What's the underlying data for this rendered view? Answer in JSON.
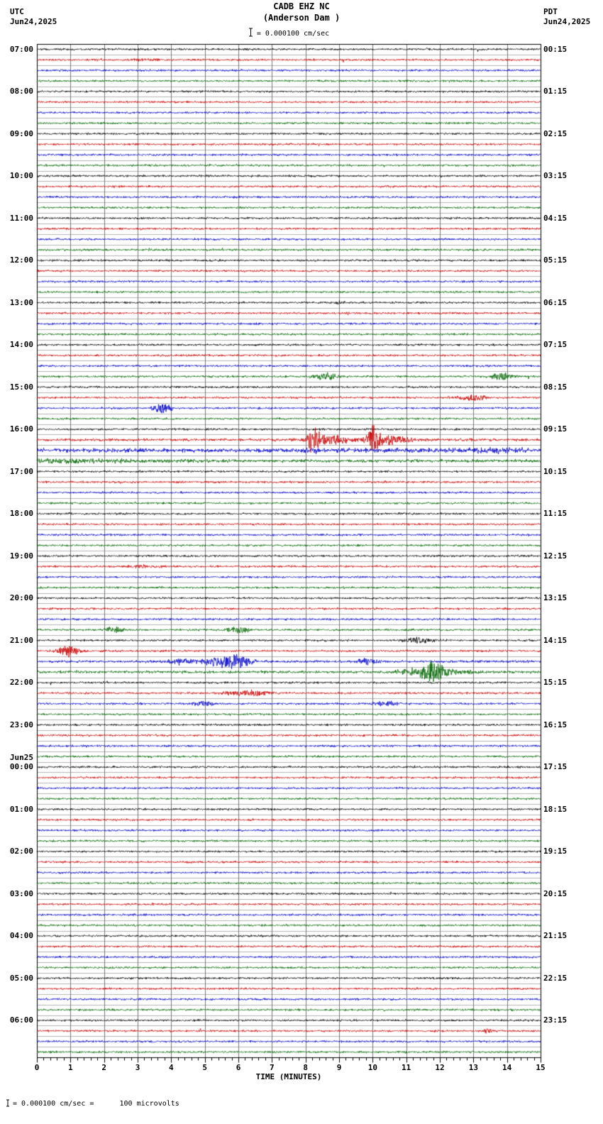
{
  "header": {
    "station_line": "CADB EHZ NC",
    "location_line": "(Anderson Dam )",
    "scale_label": "= 0.000100 cm/sec",
    "left_tz": "UTC",
    "left_date": "Jun24,2025",
    "right_tz": "PDT",
    "right_date": "Jun24,2025"
  },
  "axis": {
    "xlabel": "TIME (MINUTES)",
    "ticks": [
      "0",
      "1",
      "2",
      "3",
      "4",
      "5",
      "6",
      "7",
      "8",
      "9",
      "10",
      "11",
      "12",
      "13",
      "14",
      "15"
    ]
  },
  "footer": {
    "note": "= 0.000100 cm/sec =      100 microvolts"
  },
  "chart_data": {
    "type": "line",
    "title": "CADB EHZ NC (Anderson Dam) 24-hour helicorder seismogram",
    "xlabel": "TIME (MINUTES)",
    "x_range_minutes": [
      0,
      15
    ],
    "rows": 96,
    "row_duration_min": 15,
    "start_utc": "07:00 Jun24,2025",
    "end_utc": "07:00 Jun25,2025",
    "trace_color_cycle": [
      "#000000",
      "#cc0000",
      "#0000cc",
      "#006600"
    ],
    "grid_minor_color": "#b4b4b4",
    "grid_vertical_color": "#777777",
    "amp_units": "px",
    "left_time_labels": [
      {
        "row": 0,
        "text": "07:00"
      },
      {
        "row": 4,
        "text": "08:00"
      },
      {
        "row": 8,
        "text": "09:00"
      },
      {
        "row": 12,
        "text": "10:00"
      },
      {
        "row": 16,
        "text": "11:00"
      },
      {
        "row": 20,
        "text": "12:00"
      },
      {
        "row": 24,
        "text": "13:00"
      },
      {
        "row": 28,
        "text": "14:00"
      },
      {
        "row": 32,
        "text": "15:00"
      },
      {
        "row": 36,
        "text": "16:00"
      },
      {
        "row": 40,
        "text": "17:00"
      },
      {
        "row": 44,
        "text": "18:00"
      },
      {
        "row": 48,
        "text": "19:00"
      },
      {
        "row": 52,
        "text": "20:00"
      },
      {
        "row": 56,
        "text": "21:00"
      },
      {
        "row": 60,
        "text": "22:00"
      },
      {
        "row": 64,
        "text": "23:00"
      },
      {
        "row": 68,
        "text": "00:00",
        "date": "Jun25"
      },
      {
        "row": 72,
        "text": "01:00"
      },
      {
        "row": 76,
        "text": "02:00"
      },
      {
        "row": 80,
        "text": "03:00"
      },
      {
        "row": 84,
        "text": "04:00"
      },
      {
        "row": 88,
        "text": "05:00"
      },
      {
        "row": 92,
        "text": "06:00"
      }
    ],
    "right_time_labels": [
      {
        "row": 0,
        "text": "00:15"
      },
      {
        "row": 4,
        "text": "01:15"
      },
      {
        "row": 8,
        "text": "02:15"
      },
      {
        "row": 12,
        "text": "03:15"
      },
      {
        "row": 16,
        "text": "04:15"
      },
      {
        "row": 20,
        "text": "05:15"
      },
      {
        "row": 24,
        "text": "06:15"
      },
      {
        "row": 28,
        "text": "07:15"
      },
      {
        "row": 32,
        "text": "08:15"
      },
      {
        "row": 36,
        "text": "09:15"
      },
      {
        "row": 40,
        "text": "10:15"
      },
      {
        "row": 44,
        "text": "11:15"
      },
      {
        "row": 48,
        "text": "12:15"
      },
      {
        "row": 52,
        "text": "13:15"
      },
      {
        "row": 56,
        "text": "14:15"
      },
      {
        "row": 60,
        "text": "15:15"
      },
      {
        "row": 64,
        "text": "16:15"
      },
      {
        "row": 68,
        "text": "17:15"
      },
      {
        "row": 72,
        "text": "18:15"
      },
      {
        "row": 76,
        "text": "19:15"
      },
      {
        "row": 80,
        "text": "20:15"
      },
      {
        "row": 84,
        "text": "21:15"
      },
      {
        "row": 88,
        "text": "22:15"
      },
      {
        "row": 92,
        "text": "23:15"
      }
    ],
    "events": [
      {
        "row": 1,
        "t": 3.4,
        "amp": 1.2,
        "w": 0.5
      },
      {
        "row": 24,
        "t": 9.0,
        "amp": 2.5,
        "w": 0.12
      },
      {
        "row": 31,
        "t": 8.6,
        "amp": 4.5,
        "w": 0.3
      },
      {
        "row": 31,
        "t": 13.85,
        "amp": 5.5,
        "w": 0.25
      },
      {
        "row": 33,
        "t": 12.6,
        "amp": 2.0,
        "w": 0.3
      },
      {
        "row": 33,
        "t": 13.05,
        "amp": 4.5,
        "w": 0.25
      },
      {
        "row": 34,
        "t": 3.72,
        "amp": 6.5,
        "w": 0.2
      },
      {
        "row": 37,
        "t": 8.25,
        "amp": 20,
        "w": 0.12
      },
      {
        "row": 37,
        "t": 8.6,
        "amp": 6,
        "w": 0.45
      },
      {
        "row": 37,
        "t": 9.3,
        "amp": 2.5,
        "w": 1.2
      },
      {
        "row": 37,
        "t": 10.05,
        "amp": 18,
        "w": 0.15
      },
      {
        "row": 37,
        "t": 10.4,
        "amp": 6,
        "w": 0.5
      },
      {
        "row": 38,
        "t": 8.3,
        "amp": 2,
        "w": 0.5
      },
      {
        "row": 38,
        "t": 13.55,
        "amp": 3,
        "w": 0.9
      },
      {
        "row": 39,
        "t": 0.3,
        "amp": 3,
        "w": 1.2
      },
      {
        "row": 39,
        "t": 2.5,
        "amp": 1.5,
        "w": 1.5
      },
      {
        "row": 49,
        "t": 3.2,
        "amp": 1.8,
        "w": 0.5
      },
      {
        "row": 55,
        "t": 2.3,
        "amp": 4.5,
        "w": 0.22
      },
      {
        "row": 55,
        "t": 6.0,
        "amp": 4.5,
        "w": 0.25
      },
      {
        "row": 56,
        "t": 11.35,
        "amp": 4.0,
        "w": 0.35
      },
      {
        "row": 57,
        "t": 0.92,
        "amp": 7.5,
        "w": 0.25
      },
      {
        "row": 58,
        "t": 4.3,
        "amp": 4.0,
        "w": 0.3
      },
      {
        "row": 58,
        "t": 5.55,
        "amp": 8.0,
        "w": 0.45
      },
      {
        "row": 58,
        "t": 6.05,
        "amp": 6.0,
        "w": 0.3
      },
      {
        "row": 58,
        "t": 9.85,
        "amp": 4.5,
        "w": 0.25
      },
      {
        "row": 59,
        "t": 11.3,
        "amp": 4.0,
        "w": 0.5
      },
      {
        "row": 59,
        "t": 11.75,
        "amp": 13.0,
        "w": 0.3
      },
      {
        "row": 59,
        "t": 12.3,
        "amp": 3.0,
        "w": 0.6
      },
      {
        "row": 61,
        "t": 6.3,
        "amp": 4.5,
        "w": 0.45
      },
      {
        "row": 62,
        "t": 4.95,
        "amp": 3.5,
        "w": 0.25
      },
      {
        "row": 62,
        "t": 10.35,
        "amp": 4.0,
        "w": 0.3
      },
      {
        "row": 93,
        "t": 13.4,
        "amp": 3.5,
        "w": 0.1
      }
    ],
    "row_noise_overrides": [
      {
        "row": 37,
        "mult": 1.3
      },
      {
        "row": 38,
        "mult": 2.0
      },
      {
        "row": 39,
        "mult": 1.5
      },
      {
        "row": 58,
        "mult": 1.2
      },
      {
        "row": 59,
        "mult": 1.3
      }
    ]
  }
}
